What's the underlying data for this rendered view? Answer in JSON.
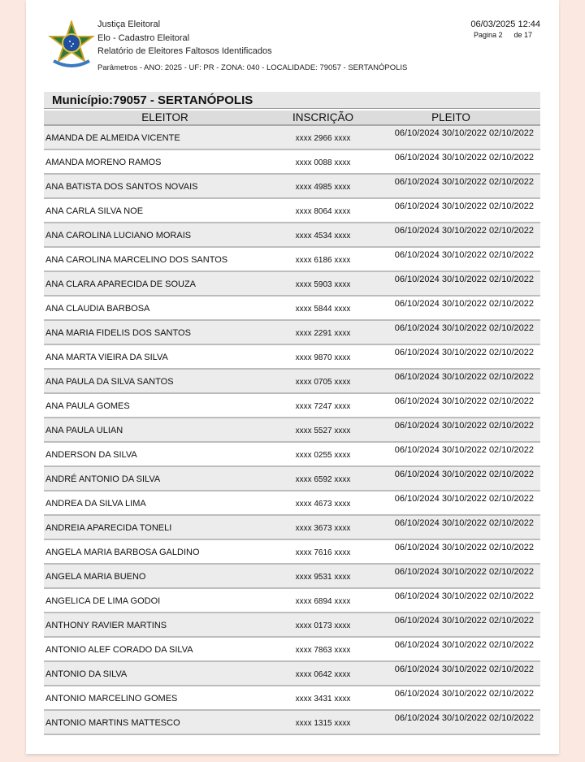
{
  "header": {
    "org": "Justiça Eleitoral",
    "system": "Elo - Cadastro Eleitoral",
    "report_title": "Relatório de Eleitores Faltosos Identificados",
    "parameters": "Parâmetros - ANO: 2025 - UF: PR - ZONA: 040 - LOCALIDADE: 79057 - SERTANÓPOLIS",
    "datetime": "06/03/2025 12:44",
    "page_label": "Pagina 2",
    "page_total": "de 17"
  },
  "table": {
    "municipio": "Município:79057 - SERTANÓPOLIS",
    "columns": [
      "ELEITOR",
      "INSCRIÇÃO",
      "PLEITO"
    ],
    "rows": [
      {
        "name": "AMANDA DE ALMEIDA VICENTE",
        "insc": "xxxx 2966 xxxx",
        "pleito": "06/10/2024 30/10/2022 02/10/2022"
      },
      {
        "name": "AMANDA MORENO RAMOS",
        "insc": "xxxx 0088 xxxx",
        "pleito": "06/10/2024 30/10/2022 02/10/2022"
      },
      {
        "name": "ANA BATISTA DOS SANTOS NOVAIS",
        "insc": "xxxx 4985 xxxx",
        "pleito": "06/10/2024 30/10/2022 02/10/2022"
      },
      {
        "name": "ANA CARLA SILVA NOE",
        "insc": "xxxx 8064 xxxx",
        "pleito": "06/10/2024 30/10/2022 02/10/2022"
      },
      {
        "name": "ANA CAROLINA LUCIANO MORAIS",
        "insc": "xxxx 4534 xxxx",
        "pleito": "06/10/2024 30/10/2022 02/10/2022"
      },
      {
        "name": "ANA CAROLINA MARCELINO DOS SANTOS",
        "insc": "xxxx 6186 xxxx",
        "pleito": "06/10/2024 30/10/2022 02/10/2022"
      },
      {
        "name": "ANA CLARA APARECIDA DE SOUZA",
        "insc": "xxxx 5903 xxxx",
        "pleito": "06/10/2024 30/10/2022 02/10/2022"
      },
      {
        "name": "ANA CLAUDIA BARBOSA",
        "insc": "xxxx 5844 xxxx",
        "pleito": "06/10/2024 30/10/2022 02/10/2022"
      },
      {
        "name": "ANA MARIA FIDELIS DOS SANTOS",
        "insc": "xxxx 2291 xxxx",
        "pleito": "06/10/2024 30/10/2022 02/10/2022"
      },
      {
        "name": "ANA MARTA VIEIRA DA SILVA",
        "insc": "xxxx 9870 xxxx",
        "pleito": "06/10/2024 30/10/2022 02/10/2022"
      },
      {
        "name": "ANA PAULA DA SILVA SANTOS",
        "insc": "xxxx 0705 xxxx",
        "pleito": "06/10/2024 30/10/2022 02/10/2022"
      },
      {
        "name": "ANA PAULA GOMES",
        "insc": "xxxx 7247 xxxx",
        "pleito": "06/10/2024 30/10/2022 02/10/2022"
      },
      {
        "name": "ANA PAULA ULIAN",
        "insc": "xxxx 5527 xxxx",
        "pleito": "06/10/2024 30/10/2022 02/10/2022"
      },
      {
        "name": "ANDERSON DA SILVA",
        "insc": "xxxx 0255 xxxx",
        "pleito": "06/10/2024 30/10/2022 02/10/2022"
      },
      {
        "name": "ANDRÉ ANTONIO DA SILVA",
        "insc": "xxxx 6592 xxxx",
        "pleito": "06/10/2024 30/10/2022 02/10/2022"
      },
      {
        "name": "ANDREA DA SILVA LIMA",
        "insc": "xxxx 4673 xxxx",
        "pleito": "06/10/2024 30/10/2022 02/10/2022"
      },
      {
        "name": "ANDREIA APARECIDA TONELI",
        "insc": "xxxx 3673 xxxx",
        "pleito": "06/10/2024 30/10/2022 02/10/2022"
      },
      {
        "name": "ANGELA MARIA BARBOSA GALDINO",
        "insc": "xxxx 7616 xxxx",
        "pleito": "06/10/2024 30/10/2022 02/10/2022"
      },
      {
        "name": "ANGELA MARIA BUENO",
        "insc": "xxxx 9531 xxxx",
        "pleito": "06/10/2024 30/10/2022 02/10/2022"
      },
      {
        "name": "ANGELICA DE LIMA GODOI",
        "insc": "xxxx 6894 xxxx",
        "pleito": "06/10/2024 30/10/2022 02/10/2022"
      },
      {
        "name": "ANTHONY RAVIER MARTINS",
        "insc": "xxxx 0173 xxxx",
        "pleito": "06/10/2024 30/10/2022 02/10/2022"
      },
      {
        "name": "ANTONIO ALEF CORADO DA SILVA",
        "insc": "xxxx 7863 xxxx",
        "pleito": "06/10/2024 30/10/2022 02/10/2022"
      },
      {
        "name": "ANTONIO DA SILVA",
        "insc": "xxxx 0642 xxxx",
        "pleito": "06/10/2024 30/10/2022 02/10/2022"
      },
      {
        "name": "ANTONIO MARCELINO GOMES",
        "insc": "xxxx 3431 xxxx",
        "pleito": "06/10/2024 30/10/2022 02/10/2022"
      },
      {
        "name": "ANTONIO MARTINS MATTESCO",
        "insc": "xxxx 1315 xxxx",
        "pleito": "06/10/2024 30/10/2022 02/10/2022"
      }
    ]
  }
}
